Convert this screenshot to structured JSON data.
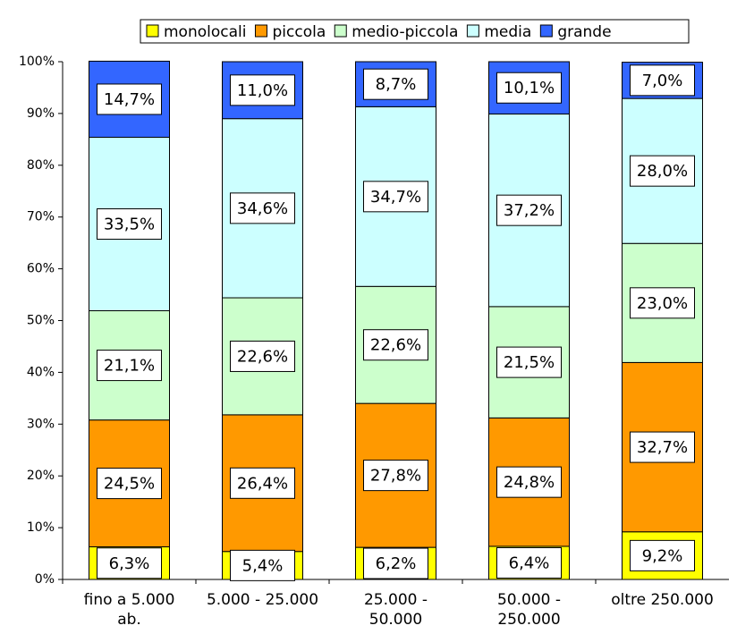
{
  "chart_data": {
    "type": "stacked_bar",
    "categories": [
      "fino a 5.000\nab.",
      "5.000 - 25.000",
      "25.000 -\n50.000",
      "50.000 -\n250.000",
      "oltre 250.000"
    ],
    "series": [
      {
        "name": "monolocali",
        "color": "#ffff00",
        "values": [
          6.3,
          5.4,
          6.2,
          6.4,
          9.2
        ],
        "value_labels": [
          "6,3%",
          "5,4%",
          "6,2%",
          "6,4%",
          "9,2%"
        ]
      },
      {
        "name": "piccola",
        "color": "#ff9900",
        "values": [
          24.5,
          26.4,
          27.8,
          24.8,
          32.7
        ],
        "value_labels": [
          "24,5%",
          "26,4%",
          "27,8%",
          "24,8%",
          "32,7%"
        ]
      },
      {
        "name": "medio-piccola",
        "color": "#ccffcc",
        "values": [
          21.1,
          22.6,
          22.6,
          21.5,
          23.0
        ],
        "value_labels": [
          "21,1%",
          "22,6%",
          "22,6%",
          "21,5%",
          "23,0%"
        ]
      },
      {
        "name": "media",
        "color": "#ccffff",
        "values": [
          33.5,
          34.6,
          34.7,
          37.2,
          28.0
        ],
        "value_labels": [
          "33,5%",
          "34,6%",
          "34,7%",
          "37,2%",
          "28,0%"
        ]
      },
      {
        "name": "grande",
        "color": "#3366ff",
        "values": [
          14.7,
          11.0,
          8.7,
          10.1,
          7.0
        ],
        "value_labels": [
          "14,7%",
          "11,0%",
          "8,7%",
          "10,1%",
          "7,0%"
        ]
      }
    ],
    "ylim": [
      0,
      100
    ],
    "yticks": [
      {
        "value": 0,
        "label": "0%"
      },
      {
        "value": 10,
        "label": "10%"
      },
      {
        "value": 20,
        "label": "20%"
      },
      {
        "value": 30,
        "label": "30%"
      },
      {
        "value": 40,
        "label": "40%"
      },
      {
        "value": 50,
        "label": "50%"
      },
      {
        "value": 60,
        "label": "60%"
      },
      {
        "value": 70,
        "label": "70%"
      },
      {
        "value": 80,
        "label": "80%"
      },
      {
        "value": 90,
        "label": "90%"
      },
      {
        "value": 100,
        "label": "100%"
      }
    ],
    "legend": "top"
  }
}
